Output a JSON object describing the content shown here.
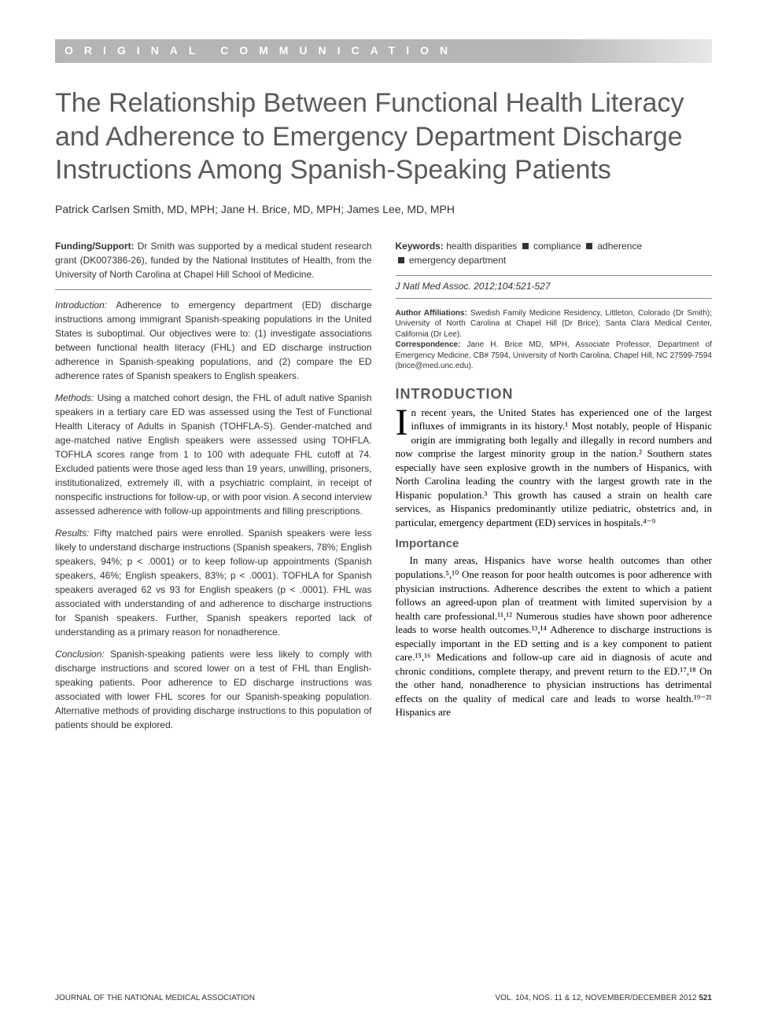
{
  "header_bar": "ORIGINAL COMMUNICATION",
  "title": "The Relationship Between Functional Health Literacy and Adherence to Emergency Department Discharge Instructions Among Spanish-Speaking Patients",
  "authors": "Patrick Carlsen Smith, MD, MPH; Jane H. Brice, MD, MPH; James Lee, MD, MPH",
  "abstract": {
    "funding_label": "Funding/Support:",
    "funding_text": " Dr Smith was supported by a medical student research grant (DK007386-26), funded by the National Institutes of Health, from the University of North Carolina at Chapel Hill School of Medicine.",
    "intro_label": "Introduction:",
    "intro_text": " Adherence to emergency department (ED) discharge instructions among immigrant Spanish-speaking populations in the United States is suboptimal. Our objectives were to: (1) investigate associations between functional health literacy (FHL) and ED discharge instruction adherence in Spanish-speaking populations, and (2) compare the ED adherence rates of Spanish speakers to English speakers.",
    "methods_label": "Methods:",
    "methods_text": " Using a matched cohort design, the FHL of adult native Spanish speakers in a tertiary care ED was assessed using the Test of Functional Health Literacy of Adults in Spanish (TOHFLA-S). Gender-matched and age-matched native English speakers were assessed using TOHFLA. TOFHLA scores range from 1 to 100 with adequate FHL cutoff at 74. Excluded patients were those aged less than 19 years, unwilling, prisoners, institutionalized, extremely ill, with a psychiatric complaint, in receipt of nonspecific instructions for follow-up, or with poor vision. A second interview assessed adherence with follow-up appointments and filling prescriptions.",
    "results_label": "Results:",
    "results_text": " Fifty matched pairs were enrolled. Spanish speakers were less likely to understand discharge instructions (Spanish speakers, 78%; English speakers, 94%; p < .0001) or to keep follow-up appointments (Spanish speakers, 46%; English speakers, 83%; p < .0001). TOFHLA for Spanish speakers averaged 62 vs 93 for English speakers (p < .0001). FHL was associated with understanding of and adherence to discharge instructions for Spanish speakers. Further, Spanish speakers reported lack of understanding as a primary reason for nonadherence.",
    "conclusion_label": "Conclusion:",
    "conclusion_text": " Spanish-speaking patients were less likely to comply with discharge instructions and scored lower on a test of FHL than English-speaking patients. Poor adherence to ED discharge instructions was associated with lower FHL scores for our Spanish-speaking population. Alternative methods of providing discharge instructions to this population of patients should be explored."
  },
  "keywords": {
    "label": "Keywords:",
    "items": [
      "health disparities",
      "compliance",
      "adherence",
      "emergency department"
    ]
  },
  "citation": "J Natl Med Assoc. 2012;104:521-527",
  "affiliations": {
    "auth_label": "Author Affiliations:",
    "auth_text": " Swedish Family Medicine Residency, Littleton, Colorado (Dr Smith); University of North Carolina at Chapel Hill (Dr Brice); Santa Clara Medical Center, California (Dr Lee).",
    "corr_label": "Correspondence:",
    "corr_text": " Jane H. Brice MD, MPH, Associate Professor, Department of Emergency Medicine, CB# 7594, University of North Carolina, Chapel Hill, NC 27599-7594 (brice@med.unc.edu)."
  },
  "intro_heading": "INTRODUCTION",
  "intro_para_first_letter": "I",
  "intro_para": "n recent years, the United States has experienced one of the largest influxes of immigrants in its history.¹ Most notably, people of Hispanic origin are immigrating both legally and illegally in record numbers and now comprise the largest minority group in the nation.² Southern states especially have seen explosive growth in the numbers of Hispanics, with North Carolina leading the country with the largest growth rate in the Hispanic population.³ This growth has caused a strain on health care services, as Hispanics predominantly utilize pediatric, obstetrics and, in particular, emergency department (ED) services in hospitals.⁴⁻⁹",
  "importance_heading": "Importance",
  "importance_para": "In many areas, Hispanics have worse health outcomes than other populations.⁵,¹⁰ One reason for poor health outcomes is poor adherence with physician instructions. Adherence describes the extent to which a patient follows an agreed-upon plan of treatment with limited supervision by a health care professional.¹¹,¹² Numerous studies have shown poor adherence leads to worse health outcomes.¹³,¹⁴ Adherence to discharge instructions is especially important in the ED setting and is a key component to patient care.¹⁵,¹⁶ Medications and follow-up care aid in diagnosis of acute and chronic conditions, complete therapy, and prevent return to the ED.¹⁷,¹⁸ On the other hand, nonadherence to physician instructions has detrimental effects on the quality of medical care and leads to worse health.¹⁹⁻²¹ Hispanics are",
  "footer": {
    "journal": "JOURNAL OF THE NATIONAL MEDICAL ASSOCIATION",
    "issue": "VOL. 104, NOS. 11 & 12, NOVEMBER/DECEMBER 2012",
    "page": "521"
  },
  "colors": {
    "header_bg": "#b5b5b5",
    "title_color": "#5a5a5a",
    "body_text": "#000000",
    "abstract_text": "#333333"
  }
}
